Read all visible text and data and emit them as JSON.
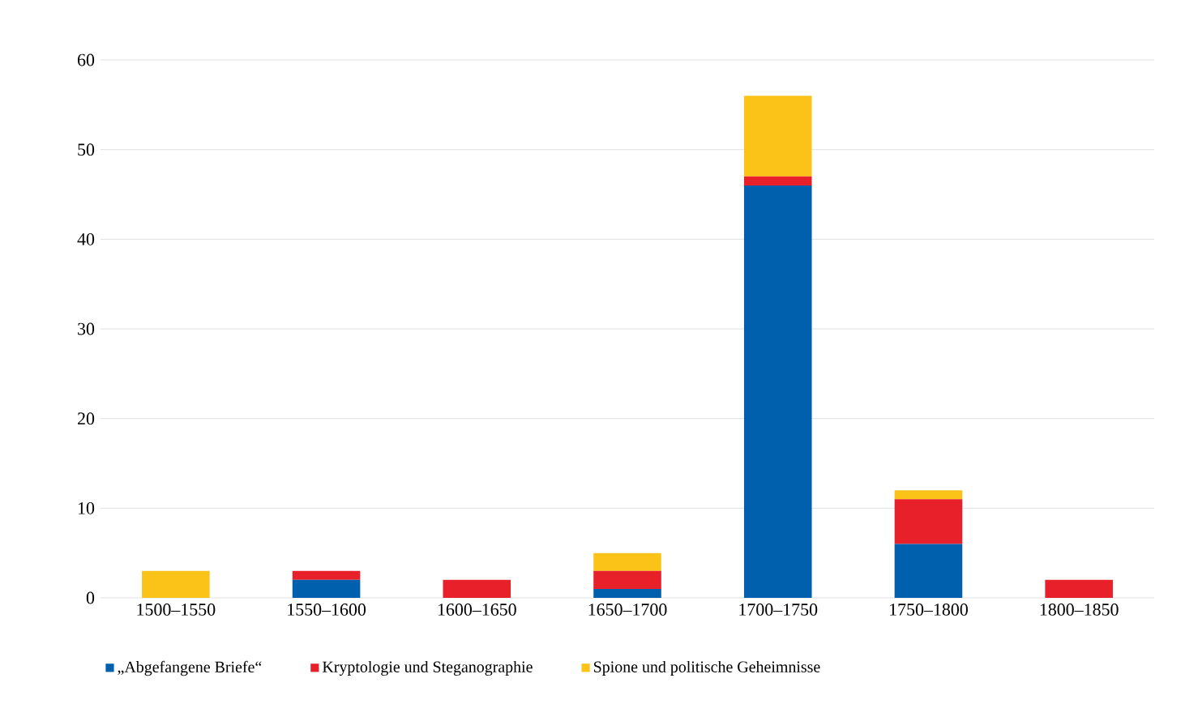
{
  "chart_data": {
    "type": "bar",
    "stacked": true,
    "categories": [
      "1500–1550",
      "1550–1600",
      "1600–1650",
      "1650–1700",
      "1700–1750",
      "1750–1800",
      "1800–1850"
    ],
    "series": [
      {
        "name": "„Abgefangene Briefe“",
        "color": "#0060ad",
        "values": [
          0,
          2,
          0,
          1,
          46,
          6,
          0
        ]
      },
      {
        "name": "Kryptologie und Steganographie",
        "color": "#e8202a",
        "values": [
          0,
          1,
          2,
          2,
          1,
          5,
          2
        ]
      },
      {
        "name": "Spione und politische Geheimnisse",
        "color": "#fbc318",
        "values": [
          3,
          0,
          0,
          2,
          9,
          1,
          0
        ]
      }
    ],
    "ylim": [
      0,
      60
    ],
    "yticks": [
      0,
      10,
      20,
      30,
      40,
      50,
      60
    ],
    "grid": "y",
    "legend": "bottom"
  }
}
